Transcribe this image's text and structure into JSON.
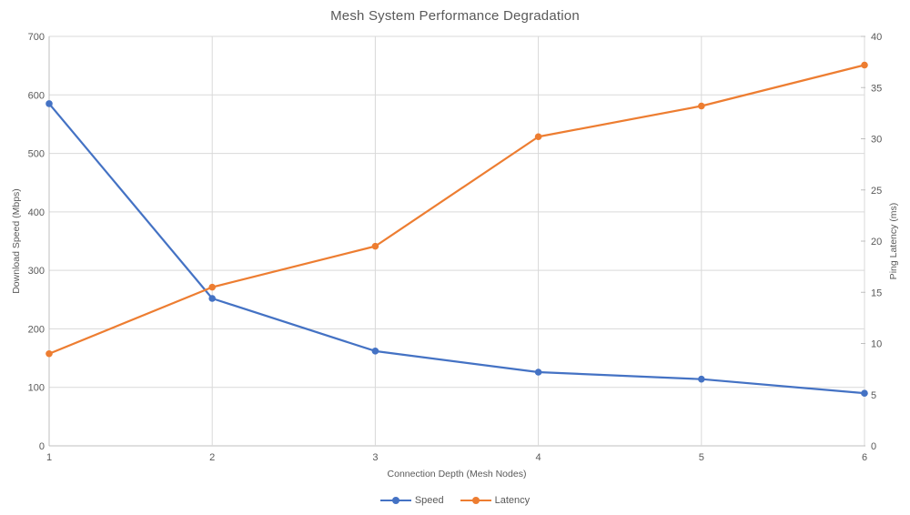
{
  "title": "Mesh System Performance Degradation",
  "chart_data": {
    "type": "line",
    "title": "Mesh System Performance Degradation",
    "xlabel": "Connection Depth (Mesh Nodes)",
    "x": [
      1,
      2,
      3,
      4,
      5,
      6
    ],
    "xlim": [
      1,
      6
    ],
    "grid": true,
    "legend_position": "bottom",
    "left_axis": {
      "label": "Download Speed (Mbps)",
      "min": 0,
      "max": 700,
      "step": 100,
      "ticks": [
        0,
        100,
        200,
        300,
        400,
        500,
        600,
        700
      ]
    },
    "right_axis": {
      "label": "Ping Latency (ms)",
      "min": 0,
      "max": 40,
      "step": 5,
      "ticks": [
        0,
        5,
        10,
        15,
        20,
        25,
        30,
        35,
        40
      ]
    },
    "series": [
      {
        "name": "Speed",
        "axis": "left",
        "color": "#4472C4",
        "values": [
          585,
          252,
          162,
          126,
          114,
          90
        ]
      },
      {
        "name": "Latency",
        "axis": "right",
        "color": "#ED7D31",
        "values": [
          9,
          15.5,
          19.5,
          30.2,
          33.2,
          37.2
        ]
      }
    ]
  },
  "colors": {
    "grid": "#D9D9D9",
    "axis_line": "#BFBFBF",
    "text": "#595959",
    "background": "#FFFFFF"
  }
}
